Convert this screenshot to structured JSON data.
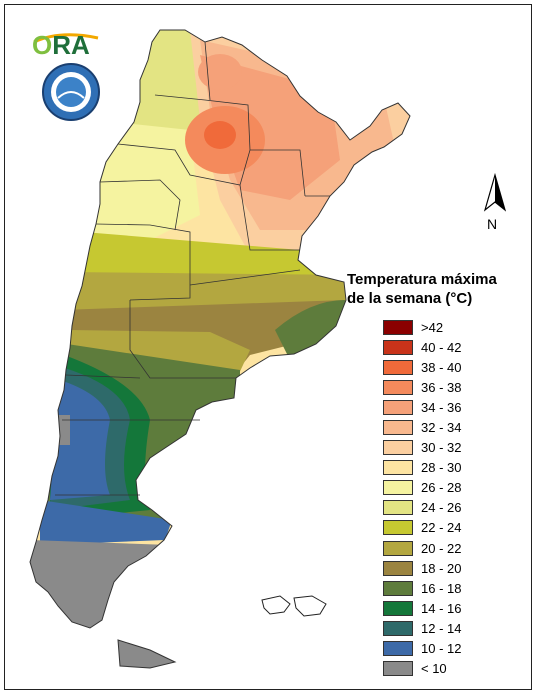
{
  "logo": {
    "text_part_1": "O",
    "text_part_2": "RA"
  },
  "north": {
    "label": "N"
  },
  "legend": {
    "title_line1": "Temperatura máxima",
    "title_line2": "de la semana (°C)",
    "items": [
      {
        "label": ">42",
        "color": "#8b0000"
      },
      {
        "label": "40 - 42",
        "color": "#c8331a"
      },
      {
        "label": "38 - 40",
        "color": "#f06a3a"
      },
      {
        "label": "36 - 38",
        "color": "#f48a5c"
      },
      {
        "label": "34 - 36",
        "color": "#f5a179"
      },
      {
        "label": "32 - 34",
        "color": "#f8b88e"
      },
      {
        "label": "30 - 32",
        "color": "#fbcfa0"
      },
      {
        "label": "28 - 30",
        "color": "#fde4a2"
      },
      {
        "label": "26 - 28",
        "color": "#f5f3a0"
      },
      {
        "label": "24 - 26",
        "color": "#e3e483"
      },
      {
        "label": "22 - 24",
        "color": "#c6c831"
      },
      {
        "label": "20 - 22",
        "color": "#b3a740"
      },
      {
        "label": "18 - 20",
        "color": "#9b8440"
      },
      {
        "label": "16 - 18",
        "color": "#5e7c3c"
      },
      {
        "label": "14 - 16",
        "color": "#14773a"
      },
      {
        "label": "12 - 14",
        "color": "#2e6a6a"
      },
      {
        "label": "10 - 12",
        "color": "#3d6aa8"
      },
      {
        "label": "< 10",
        "color": "#8a8a8a"
      }
    ]
  }
}
